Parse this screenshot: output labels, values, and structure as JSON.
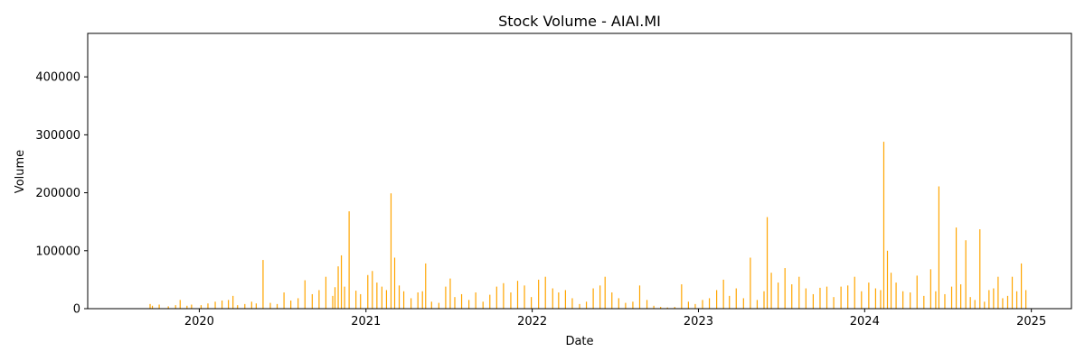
{
  "chart_data": {
    "type": "bar",
    "title": "Stock Volume - AIAI.MI",
    "xlabel": "Date",
    "ylabel": "Volume",
    "ylim": [
      0,
      475000
    ],
    "xlim": [
      "2019-05-01",
      "2025-03-30"
    ],
    "x_ticks": [
      "2020-01-01",
      "2021-01-01",
      "2022-01-01",
      "2023-01-01",
      "2024-01-01",
      "2025-01-01"
    ],
    "x_tick_labels": [
      "2020",
      "2021",
      "2022",
      "2023",
      "2024",
      "2025"
    ],
    "y_ticks": [
      0,
      100000,
      200000,
      300000,
      400000
    ],
    "y_tick_labels": [
      "0",
      "100000",
      "200000",
      "300000",
      "400000"
    ],
    "bar_color": "#FFA500",
    "series": [
      {
        "x": [
          "2019-09-15",
          "2019-09-20",
          "2019-10-05",
          "2019-10-25",
          "2019-11-10",
          "2019-11-20",
          "2019-12-05",
          "2019-12-15",
          "2020-01-05",
          "2020-01-20",
          "2020-02-05",
          "2020-02-20",
          "2020-03-05",
          "2020-03-15",
          "2020-03-25",
          "2020-04-10",
          "2020-04-25",
          "2020-05-05",
          "2020-05-20",
          "2020-06-05",
          "2020-06-20",
          "2020-07-05",
          "2020-07-20",
          "2020-08-05",
          "2020-08-20",
          "2020-09-05",
          "2020-09-20",
          "2020-10-05",
          "2020-10-20",
          "2020-10-25",
          "2020-11-01",
          "2020-11-08",
          "2020-11-15",
          "2020-11-25",
          "2020-12-10",
          "2020-12-20",
          "2021-01-05",
          "2021-01-15",
          "2021-01-25",
          "2021-02-05",
          "2021-02-15",
          "2021-02-25",
          "2021-03-05",
          "2021-03-15",
          "2021-03-25",
          "2021-04-10",
          "2021-04-25",
          "2021-05-05",
          "2021-05-12",
          "2021-05-25",
          "2021-06-10",
          "2021-06-25",
          "2021-07-05",
          "2021-07-15",
          "2021-07-30",
          "2021-08-15",
          "2021-08-30",
          "2021-09-15",
          "2021-09-30",
          "2021-10-15",
          "2021-10-30",
          "2021-11-15",
          "2021-11-30",
          "2021-12-15",
          "2021-12-30",
          "2022-01-15",
          "2022-01-30",
          "2022-02-15",
          "2022-02-28",
          "2022-03-15",
          "2022-03-30",
          "2022-04-15",
          "2022-04-30",
          "2022-05-15",
          "2022-05-30",
          "2022-06-10",
          "2022-06-25",
          "2022-07-10",
          "2022-07-25",
          "2022-08-10",
          "2022-08-25",
          "2022-09-10",
          "2022-09-25",
          "2022-10-10",
          "2022-10-25",
          "2022-11-10",
          "2022-11-25",
          "2022-12-10",
          "2022-12-25",
          "2023-01-10",
          "2023-01-25",
          "2023-02-10",
          "2023-02-25",
          "2023-03-10",
          "2023-03-25",
          "2023-04-10",
          "2023-04-25",
          "2023-05-10",
          "2023-05-25",
          "2023-06-01",
          "2023-06-10",
          "2023-06-25",
          "2023-07-10",
          "2023-07-25",
          "2023-08-10",
          "2023-08-25",
          "2023-09-10",
          "2023-09-25",
          "2023-10-10",
          "2023-10-25",
          "2023-11-10",
          "2023-11-25",
          "2023-12-10",
          "2023-12-25",
          "2024-01-10",
          "2024-01-25",
          "2024-02-05",
          "2024-02-12",
          "2024-02-20",
          "2024-02-28",
          "2024-03-10",
          "2024-03-25",
          "2024-04-10",
          "2024-04-25",
          "2024-05-10",
          "2024-05-25",
          "2024-06-05",
          "2024-06-12",
          "2024-06-25",
          "2024-07-10",
          "2024-07-20",
          "2024-07-30",
          "2024-08-10",
          "2024-08-20",
          "2024-08-30",
          "2024-09-10",
          "2024-09-20",
          "2024-09-30",
          "2024-10-10",
          "2024-10-20",
          "2024-10-30",
          "2024-11-10",
          "2024-11-20",
          "2024-11-30",
          "2024-12-10",
          "2024-12-20"
        ],
        "values": [
          8000,
          5000,
          7000,
          4000,
          6000,
          15000,
          5000,
          7000,
          6000,
          9000,
          12000,
          14000,
          15000,
          22000,
          6000,
          8000,
          12000,
          9000,
          84000,
          10000,
          8000,
          28000,
          14000,
          18000,
          49000,
          25000,
          32000,
          55000,
          22000,
          37000,
          73000,
          92000,
          38000,
          168000,
          31000,
          25000,
          58000,
          65000,
          45000,
          38000,
          32000,
          199000,
          88000,
          40000,
          30000,
          18000,
          28000,
          30000,
          78000,
          12000,
          10000,
          38000,
          52000,
          20000,
          25000,
          15000,
          28000,
          12000,
          24000,
          38000,
          44000,
          28000,
          48000,
          40000,
          20000,
          50000,
          55000,
          35000,
          28000,
          32000,
          18000,
          8000,
          12000,
          35000,
          40000,
          55000,
          28000,
          18000,
          10000,
          12000,
          40000,
          15000,
          5000,
          3000,
          2000,
          3000,
          42000,
          12000,
          8000,
          15000,
          18000,
          32000,
          50000,
          22000,
          35000,
          18000,
          88000,
          15000,
          30000,
          158000,
          62000,
          45000,
          70000,
          42000,
          55000,
          35000,
          25000,
          36000,
          38000,
          20000,
          38000,
          40000,
          55000,
          30000,
          45000,
          35000,
          32000,
          288000,
          100000,
          62000,
          45000,
          30000,
          28000,
          57000,
          22000,
          68000,
          30000,
          211000,
          25000,
          38000,
          140000,
          42000,
          118000,
          20000,
          15000,
          137000,
          12000,
          32000,
          35000,
          55000,
          18000,
          22000,
          55000,
          30000,
          78000,
          32000
        ]
      }
    ]
  }
}
